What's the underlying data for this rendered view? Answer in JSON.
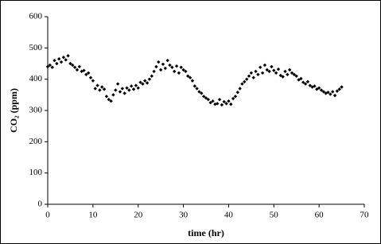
{
  "chart_data": {
    "type": "scatter",
    "xlabel": "time (hr)",
    "ylabel": "CO₂ (ppm)",
    "x": [
      0,
      0.5,
      1,
      1.5,
      2,
      2.5,
      3,
      3.5,
      4,
      4.5,
      5,
      5.5,
      6,
      6.5,
      7,
      7.5,
      8,
      8.5,
      9,
      9.5,
      10,
      10.5,
      11,
      11.5,
      12,
      12.5,
      13,
      13.5,
      14,
      14.5,
      15,
      15.5,
      16,
      16.5,
      17,
      17.5,
      18,
      18.5,
      19,
      19.5,
      20,
      20.5,
      21,
      21.5,
      22,
      22.5,
      23,
      23.5,
      24,
      24.5,
      25,
      25.5,
      26,
      26.5,
      27,
      27.5,
      28,
      28.5,
      29,
      29.5,
      30,
      30.5,
      31,
      31.5,
      32,
      32.5,
      33,
      33.5,
      34,
      34.5,
      35,
      35.5,
      36,
      36.5,
      37,
      37.5,
      38,
      38.5,
      39,
      39.5,
      40,
      40.5,
      41,
      41.5,
      42,
      42.5,
      43,
      43.5,
      44,
      44.5,
      45,
      45.5,
      46,
      46.5,
      47,
      47.5,
      48,
      48.5,
      49,
      49.5,
      50,
      50.5,
      51,
      51.5,
      52,
      52.5,
      53,
      53.5,
      54,
      54.5,
      55,
      55.5,
      56,
      56.5,
      57,
      57.5,
      58,
      58.5,
      59,
      59.5,
      60,
      60.5,
      61,
      61.5,
      62,
      62.5,
      63,
      63.5,
      64,
      64.5,
      65
    ],
    "series": [
      {
        "color": "#000000",
        "values": [
          440,
          445,
          438,
          460,
          450,
          465,
          455,
          470,
          462,
          475,
          450,
          445,
          438,
          430,
          440,
          425,
          428,
          415,
          420,
          405,
          395,
          370,
          380,
          365,
          375,
          368,
          345,
          335,
          330,
          350,
          365,
          385,
          360,
          370,
          355,
          372,
          365,
          378,
          368,
          380,
          372,
          390,
          385,
          395,
          388,
          400,
          410,
          425,
          440,
          455,
          430,
          448,
          435,
          460,
          445,
          438,
          425,
          442,
          420,
          438,
          430,
          425,
          410,
          405,
          395,
          378,
          370,
          360,
          355,
          345,
          340,
          335,
          325,
          330,
          320,
          322,
          335,
          318,
          328,
          322,
          330,
          320,
          338,
          345,
          358,
          370,
          385,
          392,
          400,
          410,
          420,
          405,
          425,
          415,
          438,
          420,
          445,
          430,
          425,
          440,
          428,
          420,
          432,
          412,
          408,
          425,
          415,
          430,
          420,
          415,
          410,
          398,
          402,
          390,
          385,
          392,
          380,
          375,
          378,
          368,
          372,
          365,
          360,
          355,
          358,
          352,
          360,
          348,
          362,
          368,
          375
        ]
      }
    ],
    "xlim": [
      0,
      70
    ],
    "xticks": [
      0,
      10,
      20,
      30,
      40,
      50,
      60,
      70
    ],
    "ylim": [
      0,
      600
    ],
    "yticks": [
      0,
      100,
      200,
      300,
      400,
      500,
      600
    ]
  }
}
